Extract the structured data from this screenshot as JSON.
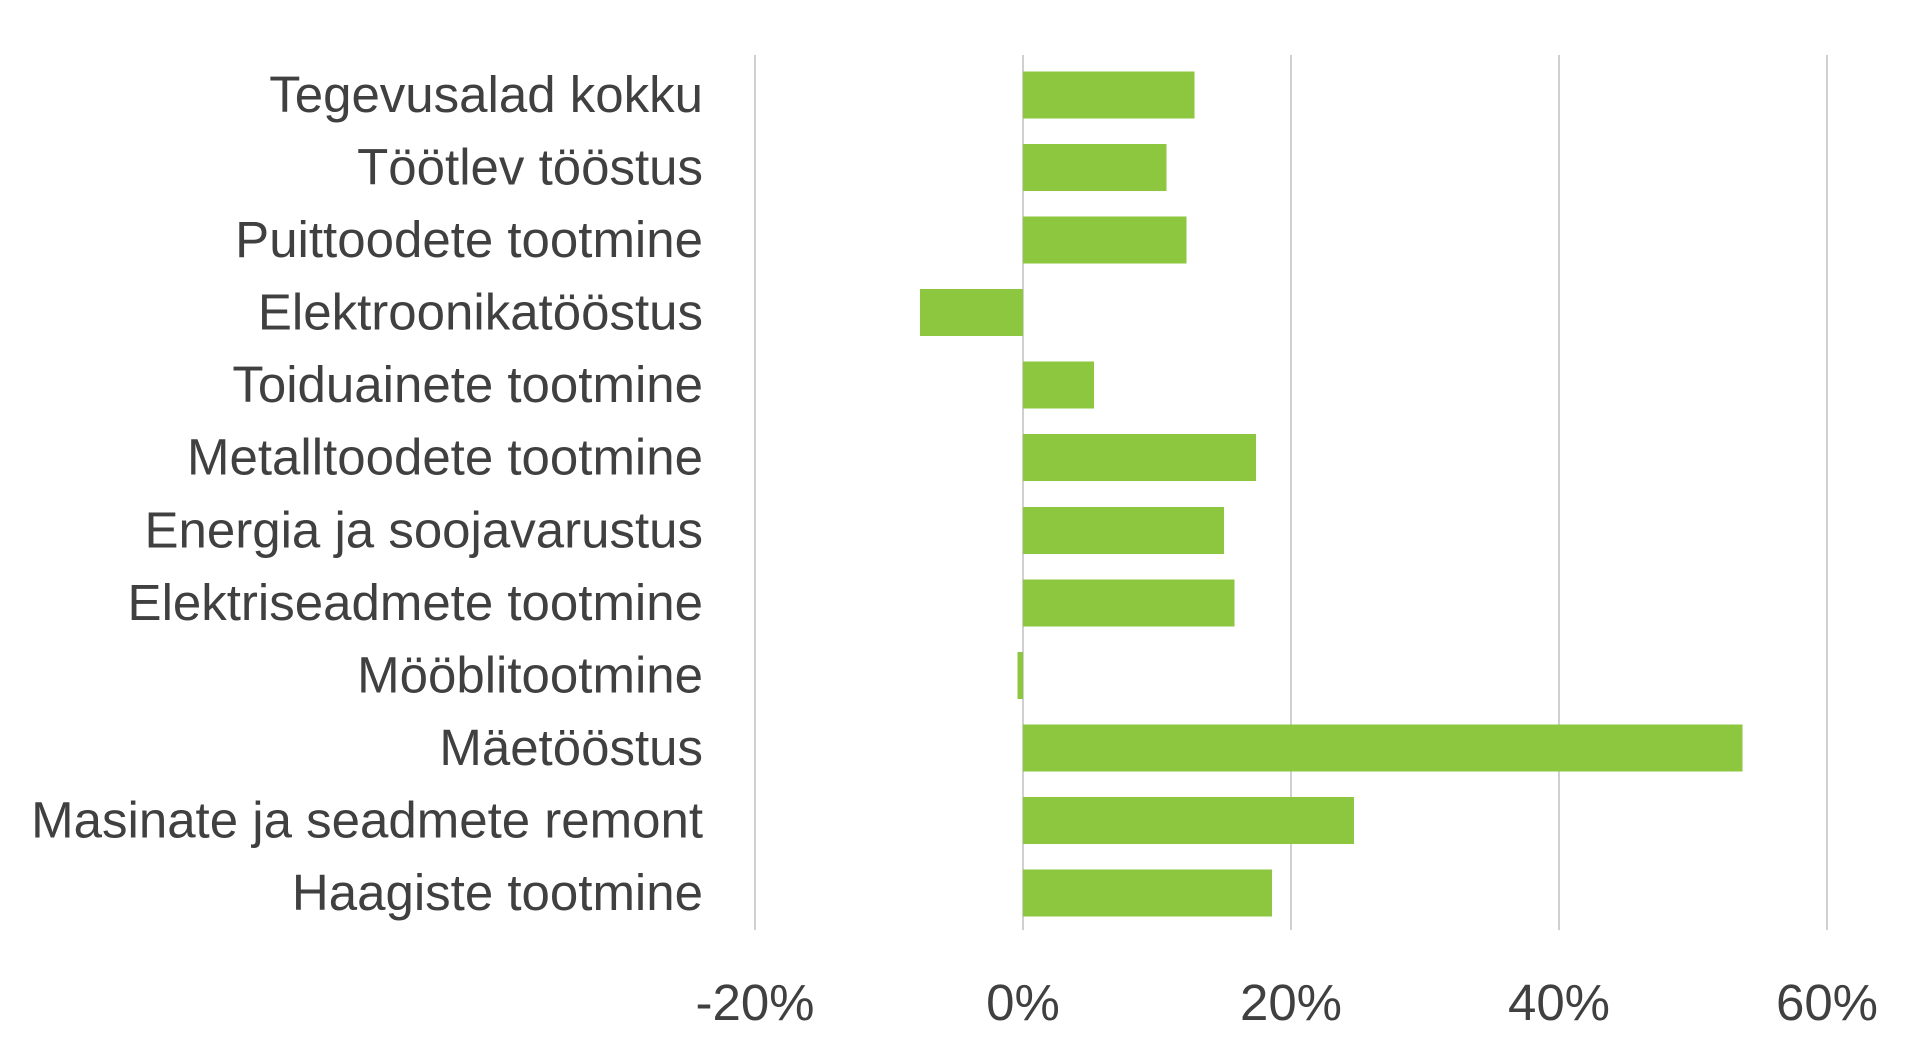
{
  "chart_data": {
    "type": "bar",
    "orientation": "horizontal",
    "categories": [
      "Tegevusalad kokku",
      "Töötlev tööstus",
      "Puittoodete tootmine",
      "Elektroonikatööstus",
      "Toiduainete tootmine",
      "Metalltoodete tootmine",
      "Energia ja soojavarustus",
      "Elektriseadmete tootmine",
      "Mööblitootmine",
      "Mäetööstus",
      "Masinate ja seadmete remont",
      "Haagiste tootmine"
    ],
    "values": [
      12.8,
      10.7,
      12.2,
      -7.7,
      5.3,
      17.4,
      15.0,
      15.8,
      -0.4,
      53.7,
      24.7,
      18.6
    ],
    "value_unit": "%",
    "xlim": [
      -20,
      60
    ],
    "x_ticks": [
      -20,
      0,
      20,
      40,
      60
    ],
    "x_tick_labels": [
      "-20%",
      "0%",
      "20%",
      "40%",
      "60%"
    ],
    "title": "",
    "xlabel": "",
    "ylabel": "",
    "grid": "vertical",
    "legend": "none",
    "bar_color": "#8dc63f",
    "gridline_color": "#d0d0d0",
    "text_color": "#404040"
  }
}
